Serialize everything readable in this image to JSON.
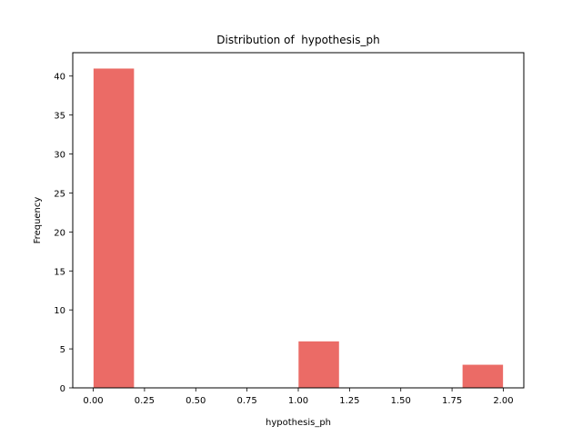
{
  "chart_data": {
    "type": "bar",
    "title": "Distribution of  hypothesis_ph",
    "xlabel": "hypothesis_ph",
    "ylabel": "Frequency",
    "bins": [
      {
        "x0": 0.0,
        "x1": 0.2,
        "count": 41
      },
      {
        "x0": 0.2,
        "x1": 0.4,
        "count": 0
      },
      {
        "x0": 0.4,
        "x1": 0.6,
        "count": 0
      },
      {
        "x0": 0.6,
        "x1": 0.8,
        "count": 0
      },
      {
        "x0": 0.8,
        "x1": 1.0,
        "count": 0
      },
      {
        "x0": 1.0,
        "x1": 1.2,
        "count": 6
      },
      {
        "x0": 1.2,
        "x1": 1.4,
        "count": 0
      },
      {
        "x0": 1.4,
        "x1": 1.6,
        "count": 0
      },
      {
        "x0": 1.6,
        "x1": 1.8,
        "count": 0
      },
      {
        "x0": 1.8,
        "x1": 2.0,
        "count": 3
      }
    ],
    "xlim": [
      -0.1,
      2.1
    ],
    "ylim": [
      0,
      43
    ],
    "xticks": [
      0.0,
      0.25,
      0.5,
      0.75,
      1.0,
      1.25,
      1.5,
      1.75,
      2.0
    ],
    "xtick_labels": [
      "0.00",
      "0.25",
      "0.50",
      "0.75",
      "1.00",
      "1.25",
      "1.50",
      "1.75",
      "2.00"
    ],
    "yticks": [
      0,
      5,
      10,
      15,
      20,
      25,
      30,
      35,
      40
    ],
    "ytick_labels": [
      "0",
      "5",
      "10",
      "15",
      "20",
      "25",
      "30",
      "35",
      "40"
    ],
    "bar_color": "#eb6b66",
    "grid": false,
    "legend": false
  }
}
